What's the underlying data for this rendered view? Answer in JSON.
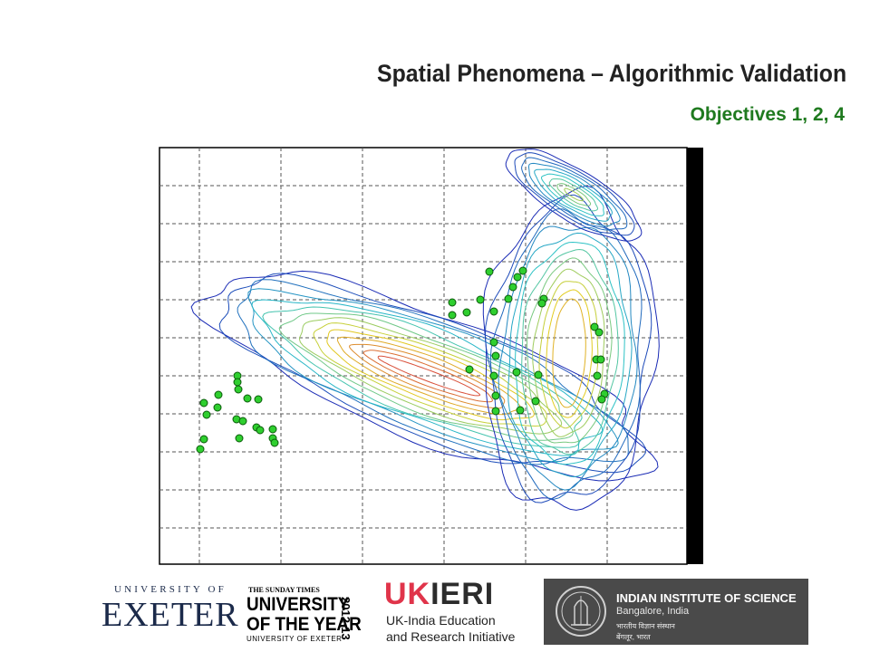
{
  "slide": {
    "title": "Spatial Phenomena – Algorithmic Validation",
    "subtitle": "Objectives 1, 2, 4"
  },
  "plot": {
    "description_colors": {
      "outer_contour": "#1a2bb5",
      "mid_contour": "#29c2c9",
      "inner_contour": "#e2d21f",
      "core_contour": "#d9503a",
      "marker_fill": "#2fcf2f",
      "marker_edge": "#0a5a0a"
    }
  },
  "logos": {
    "exeter": {
      "top": "UNIVERSITY OF",
      "name": "EXETER"
    },
    "sunday_times": {
      "header": "THE SUNDAY TIMES",
      "line1": "UNIVERSITY",
      "line2": "OF THE YEAR",
      "year": "2012-13",
      "footer": "UNIVERSITY OF EXETER"
    },
    "ukieri": {
      "uk": "UK",
      "eri": "IERI",
      "line1": "UK-India Education",
      "line2": "and Research Initiative"
    },
    "iisc": {
      "name": "INDIAN INSTITUTE OF SCIENCE",
      "place": "Bangalore, India",
      "hindi1": "भारतीय विज्ञान संस्थान",
      "hindi2": "बेंगलूर, भारत"
    }
  }
}
